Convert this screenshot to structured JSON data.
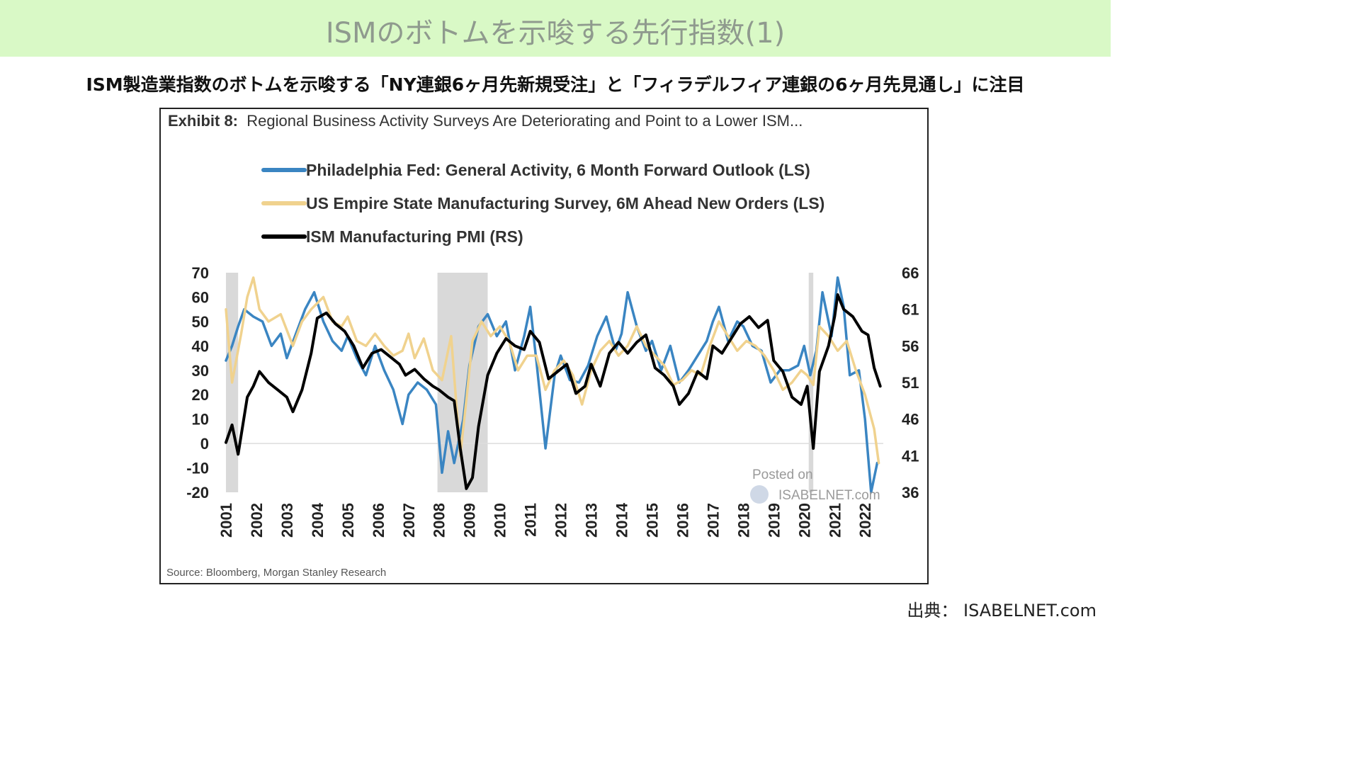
{
  "header": {
    "title": "ISMのボトムを示唆する先行指数(1)",
    "subtitle": "ISM製造業指数のボトムを示唆する「NY連銀6ヶ月先新規受注」と「フィラデルフィア連銀の6ヶ月先見通し」に注目"
  },
  "exhibit": {
    "label": "Exhibit 8:",
    "title": "Regional Business Activity Surveys Are Deteriorating and Point to a Lower ISM...",
    "source": "Source: Bloomberg, Morgan Stanley Research"
  },
  "watermark": {
    "line1": "Posted on",
    "line2": "ISABELNET.com"
  },
  "credit": "出典： ISABELNET.com",
  "colors": {
    "header_band": "#d9f9c6",
    "philly": "#3a85c2",
    "empire": "#f0d28e",
    "ism": "#000000",
    "recession": "#d9d9d9"
  },
  "chart_data": {
    "type": "line",
    "left_axis": {
      "range": [
        -20,
        70
      ],
      "ticks": [
        "70",
        "60",
        "50",
        "40",
        "30",
        "20",
        "10",
        "0",
        "-10",
        "-20"
      ]
    },
    "right_axis": {
      "range": [
        36,
        66
      ],
      "ticks": [
        "66",
        "61",
        "56",
        "51",
        "46",
        "41",
        "36"
      ]
    },
    "x_axis": {
      "range": [
        2001.0,
        2022.6
      ],
      "ticks": [
        "2001",
        "2002",
        "2003",
        "2004",
        "2005",
        "2006",
        "2007",
        "2008",
        "2009",
        "2010",
        "2011",
        "2012",
        "2013",
        "2014",
        "2015",
        "2016",
        "2017",
        "2018",
        "2019",
        "2020",
        "2021",
        "2022"
      ]
    },
    "recessions": [
      [
        2001.0,
        2001.4
      ],
      [
        2007.95,
        2009.6
      ],
      [
        2020.15,
        2020.3
      ]
    ],
    "series": [
      {
        "name": "Philadelphia Fed: General Activity, 6 Month Forward Outlook (LS)",
        "axis": "left",
        "color": "#3a85c2",
        "points": [
          [
            2001.0,
            34
          ],
          [
            2001.2,
            40
          ],
          [
            2001.4,
            48
          ],
          [
            2001.6,
            55
          ],
          [
            2001.9,
            52
          ],
          [
            2002.2,
            50
          ],
          [
            2002.5,
            40
          ],
          [
            2002.8,
            45
          ],
          [
            2003.0,
            35
          ],
          [
            2003.3,
            45
          ],
          [
            2003.6,
            55
          ],
          [
            2003.9,
            62
          ],
          [
            2004.2,
            50
          ],
          [
            2004.5,
            42
          ],
          [
            2004.8,
            38
          ],
          [
            2005.0,
            44
          ],
          [
            2005.3,
            35
          ],
          [
            2005.6,
            28
          ],
          [
            2005.9,
            40
          ],
          [
            2006.2,
            30
          ],
          [
            2006.5,
            22
          ],
          [
            2006.8,
            8
          ],
          [
            2007.0,
            20
          ],
          [
            2007.3,
            25
          ],
          [
            2007.6,
            22
          ],
          [
            2007.9,
            16
          ],
          [
            2008.1,
            -12
          ],
          [
            2008.3,
            5
          ],
          [
            2008.5,
            -8
          ],
          [
            2008.8,
            10
          ],
          [
            2009.0,
            32
          ],
          [
            2009.3,
            48
          ],
          [
            2009.6,
            53
          ],
          [
            2009.9,
            44
          ],
          [
            2010.2,
            50
          ],
          [
            2010.5,
            30
          ],
          [
            2010.8,
            44
          ],
          [
            2011.0,
            56
          ],
          [
            2011.2,
            34
          ],
          [
            2011.5,
            -2
          ],
          [
            2011.8,
            28
          ],
          [
            2012.0,
            36
          ],
          [
            2012.3,
            26
          ],
          [
            2012.6,
            25
          ],
          [
            2012.9,
            32
          ],
          [
            2013.2,
            44
          ],
          [
            2013.5,
            52
          ],
          [
            2013.8,
            38
          ],
          [
            2014.0,
            45
          ],
          [
            2014.2,
            62
          ],
          [
            2014.5,
            48
          ],
          [
            2014.8,
            38
          ],
          [
            2015.0,
            42
          ],
          [
            2015.3,
            30
          ],
          [
            2015.6,
            40
          ],
          [
            2015.9,
            25
          ],
          [
            2016.2,
            30
          ],
          [
            2016.5,
            36
          ],
          [
            2016.8,
            42
          ],
          [
            2017.0,
            50
          ],
          [
            2017.2,
            56
          ],
          [
            2017.5,
            42
          ],
          [
            2017.8,
            50
          ],
          [
            2018.0,
            48
          ],
          [
            2018.3,
            40
          ],
          [
            2018.6,
            38
          ],
          [
            2018.9,
            25
          ],
          [
            2019.2,
            30
          ],
          [
            2019.5,
            30
          ],
          [
            2019.8,
            32
          ],
          [
            2020.0,
            40
          ],
          [
            2020.2,
            28
          ],
          [
            2020.4,
            38
          ],
          [
            2020.6,
            62
          ],
          [
            2020.9,
            44
          ],
          [
            2021.1,
            68
          ],
          [
            2021.3,
            56
          ],
          [
            2021.5,
            28
          ],
          [
            2021.8,
            30
          ],
          [
            2022.0,
            10
          ],
          [
            2022.2,
            -20
          ],
          [
            2022.4,
            -8
          ]
        ]
      },
      {
        "name": "US Empire State Manufacturing Survey, 6M Ahead New Orders (LS)",
        "axis": "left",
        "color": "#f0d28e",
        "points": [
          [
            2001.0,
            55
          ],
          [
            2001.2,
            25
          ],
          [
            2001.5,
            45
          ],
          [
            2001.7,
            60
          ],
          [
            2001.9,
            68
          ],
          [
            2002.1,
            55
          ],
          [
            2002.4,
            50
          ],
          [
            2002.8,
            53
          ],
          [
            2003.2,
            40
          ],
          [
            2003.5,
            50
          ],
          [
            2003.8,
            55
          ],
          [
            2004.2,
            60
          ],
          [
            2004.5,
            50
          ],
          [
            2004.8,
            48
          ],
          [
            2005.0,
            52
          ],
          [
            2005.3,
            42
          ],
          [
            2005.6,
            40
          ],
          [
            2005.9,
            45
          ],
          [
            2006.2,
            40
          ],
          [
            2006.5,
            36
          ],
          [
            2006.8,
            38
          ],
          [
            2007.0,
            45
          ],
          [
            2007.2,
            35
          ],
          [
            2007.5,
            43
          ],
          [
            2007.8,
            30
          ],
          [
            2008.1,
            26
          ],
          [
            2008.4,
            44
          ],
          [
            2008.7,
            -5
          ],
          [
            2008.9,
            18
          ],
          [
            2009.1,
            42
          ],
          [
            2009.4,
            50
          ],
          [
            2009.7,
            44
          ],
          [
            2010.0,
            48
          ],
          [
            2010.3,
            42
          ],
          [
            2010.6,
            30
          ],
          [
            2010.9,
            36
          ],
          [
            2011.2,
            36
          ],
          [
            2011.5,
            22
          ],
          [
            2011.8,
            30
          ],
          [
            2012.1,
            34
          ],
          [
            2012.4,
            28
          ],
          [
            2012.7,
            16
          ],
          [
            2013.0,
            30
          ],
          [
            2013.3,
            38
          ],
          [
            2013.6,
            42
          ],
          [
            2013.9,
            36
          ],
          [
            2014.2,
            40
          ],
          [
            2014.5,
            48
          ],
          [
            2014.8,
            40
          ],
          [
            2015.1,
            36
          ],
          [
            2015.4,
            32
          ],
          [
            2015.7,
            24
          ],
          [
            2016.0,
            26
          ],
          [
            2016.3,
            30
          ],
          [
            2016.6,
            28
          ],
          [
            2016.9,
            40
          ],
          [
            2017.2,
            50
          ],
          [
            2017.5,
            44
          ],
          [
            2017.8,
            38
          ],
          [
            2018.1,
            42
          ],
          [
            2018.4,
            40
          ],
          [
            2018.7,
            36
          ],
          [
            2019.0,
            30
          ],
          [
            2019.3,
            22
          ],
          [
            2019.6,
            25
          ],
          [
            2019.9,
            30
          ],
          [
            2020.1,
            28
          ],
          [
            2020.3,
            24
          ],
          [
            2020.5,
            48
          ],
          [
            2020.8,
            44
          ],
          [
            2021.1,
            38
          ],
          [
            2021.4,
            42
          ],
          [
            2021.7,
            30
          ],
          [
            2022.0,
            20
          ],
          [
            2022.3,
            6
          ],
          [
            2022.45,
            -8
          ]
        ]
      },
      {
        "name": "ISM Manufacturing PMI (RS)",
        "axis": "right",
        "color": "#000000",
        "points": [
          [
            2001.0,
            42.8
          ],
          [
            2001.2,
            45.2
          ],
          [
            2001.4,
            41.2
          ],
          [
            2001.7,
            49.0
          ],
          [
            2001.9,
            50.5
          ],
          [
            2002.1,
            52.5
          ],
          [
            2002.4,
            51.0
          ],
          [
            2002.7,
            50.0
          ],
          [
            2003.0,
            49.0
          ],
          [
            2003.2,
            47.0
          ],
          [
            2003.5,
            50.0
          ],
          [
            2003.8,
            55.0
          ],
          [
            2004.0,
            59.8
          ],
          [
            2004.3,
            60.5
          ],
          [
            2004.6,
            59.0
          ],
          [
            2004.9,
            58.0
          ],
          [
            2005.2,
            56.0
          ],
          [
            2005.5,
            53.0
          ],
          [
            2005.8,
            55.0
          ],
          [
            2006.1,
            55.5
          ],
          [
            2006.4,
            54.5
          ],
          [
            2006.7,
            53.5
          ],
          [
            2006.9,
            52.0
          ],
          [
            2007.2,
            52.8
          ],
          [
            2007.5,
            51.5
          ],
          [
            2007.8,
            50.5
          ],
          [
            2008.0,
            50.0
          ],
          [
            2008.3,
            49.0
          ],
          [
            2008.5,
            48.5
          ],
          [
            2008.7,
            42.0
          ],
          [
            2008.9,
            36.5
          ],
          [
            2009.1,
            38.0
          ],
          [
            2009.3,
            45.0
          ],
          [
            2009.6,
            52.0
          ],
          [
            2009.9,
            55.0
          ],
          [
            2010.2,
            57.0
          ],
          [
            2010.5,
            56.0
          ],
          [
            2010.8,
            55.5
          ],
          [
            2011.0,
            58.0
          ],
          [
            2011.3,
            56.5
          ],
          [
            2011.6,
            51.5
          ],
          [
            2011.9,
            52.5
          ],
          [
            2012.2,
            53.5
          ],
          [
            2012.5,
            49.5
          ],
          [
            2012.8,
            50.5
          ],
          [
            2013.0,
            53.5
          ],
          [
            2013.3,
            50.5
          ],
          [
            2013.6,
            55.0
          ],
          [
            2013.9,
            56.5
          ],
          [
            2014.2,
            55.0
          ],
          [
            2014.5,
            56.5
          ],
          [
            2014.8,
            57.5
          ],
          [
            2015.1,
            53.0
          ],
          [
            2015.4,
            52.0
          ],
          [
            2015.7,
            50.5
          ],
          [
            2015.9,
            48.0
          ],
          [
            2016.2,
            49.5
          ],
          [
            2016.5,
            52.5
          ],
          [
            2016.8,
            51.5
          ],
          [
            2017.0,
            56.0
          ],
          [
            2017.3,
            55.0
          ],
          [
            2017.6,
            57.0
          ],
          [
            2017.9,
            59.0
          ],
          [
            2018.2,
            60.0
          ],
          [
            2018.5,
            58.5
          ],
          [
            2018.8,
            59.5
          ],
          [
            2019.0,
            54.0
          ],
          [
            2019.3,
            52.5
          ],
          [
            2019.6,
            49.0
          ],
          [
            2019.9,
            48.0
          ],
          [
            2020.1,
            50.5
          ],
          [
            2020.3,
            42.0
          ],
          [
            2020.5,
            52.5
          ],
          [
            2020.8,
            56.0
          ],
          [
            2021.0,
            60.0
          ],
          [
            2021.1,
            63.0
          ],
          [
            2021.3,
            61.0
          ],
          [
            2021.6,
            60.0
          ],
          [
            2021.9,
            58.0
          ],
          [
            2022.1,
            57.5
          ],
          [
            2022.3,
            53.0
          ],
          [
            2022.5,
            50.5
          ]
        ]
      }
    ]
  }
}
